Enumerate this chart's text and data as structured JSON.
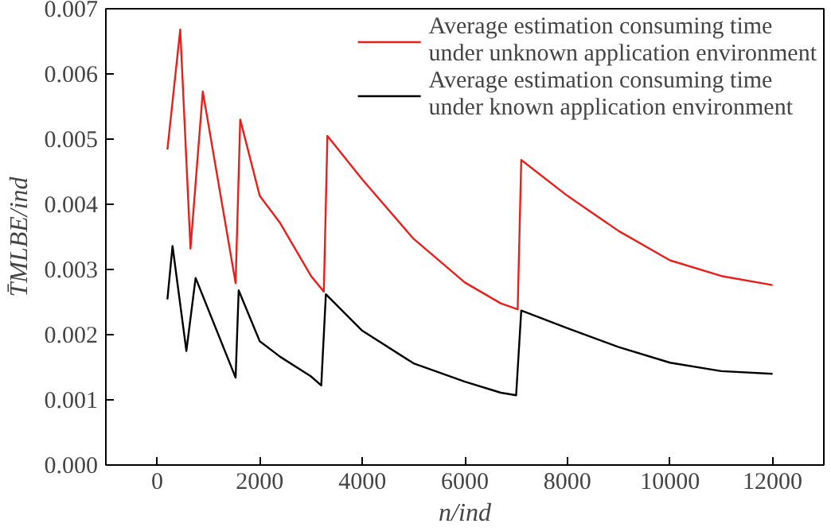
{
  "chart_data": {
    "type": "line",
    "xlabel": "n/ind",
    "ylabel": "T̄MLBE/ind",
    "xlim": [
      -1000,
      13000
    ],
    "ylim": [
      0,
      0.007
    ],
    "xticks": [
      0,
      2000,
      4000,
      6000,
      8000,
      10000,
      12000
    ],
    "yticks": [
      {
        "value": 0,
        "label": "0.000"
      },
      {
        "value": 0.001,
        "label": "0.001"
      },
      {
        "value": 0.002,
        "label": "0.002"
      },
      {
        "value": 0.003,
        "label": "0.003"
      },
      {
        "value": 0.004,
        "label": "0.004"
      },
      {
        "value": 0.005,
        "label": "0.005"
      },
      {
        "value": 0.006,
        "label": "0.006"
      },
      {
        "value": 0.007,
        "label": "0.007"
      }
    ],
    "grid": false,
    "legend": "top right",
    "marker": "none",
    "line_style": "solid",
    "series": [
      {
        "name": "Average estimation consuming time\nunder unknown application environment",
        "color": "#e8201c",
        "x": [
          200,
          450,
          650,
          890,
          1530,
          1620,
          2000,
          2400,
          3000,
          3250,
          3320,
          4000,
          5000,
          6000,
          6700,
          7030,
          7100,
          8000,
          9000,
          10000,
          11000,
          12000
        ],
        "values": [
          0.00484,
          0.00668,
          0.00332,
          0.00573,
          0.00279,
          0.0053,
          0.00413,
          0.00371,
          0.0029,
          0.00266,
          0.00505,
          0.00438,
          0.00347,
          0.0028,
          0.00248,
          0.00239,
          0.00468,
          0.00413,
          0.00359,
          0.00314,
          0.0029,
          0.00276
        ]
      },
      {
        "name": "Average estimation consuming time\nunder known application environment",
        "color": "#000000",
        "x": [
          200,
          300,
          570,
          750,
          1530,
          1590,
          2000,
          2400,
          3000,
          3200,
          3290,
          4000,
          5000,
          6000,
          6700,
          7000,
          7100,
          8000,
          9000,
          10000,
          11000,
          12000
        ],
        "values": [
          0.00254,
          0.00336,
          0.00175,
          0.00287,
          0.00134,
          0.00268,
          0.0019,
          0.00166,
          0.00136,
          0.00122,
          0.00262,
          0.00206,
          0.00156,
          0.00128,
          0.00111,
          0.00107,
          0.00237,
          0.0021,
          0.00181,
          0.00157,
          0.00144,
          0.0014
        ]
      }
    ]
  }
}
